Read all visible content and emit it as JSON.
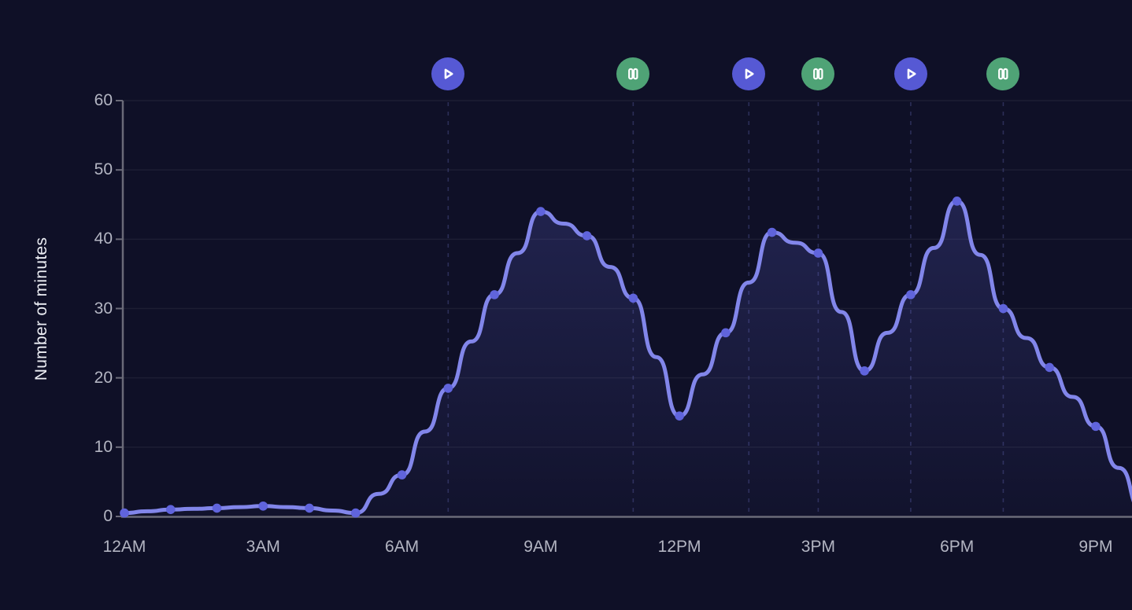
{
  "app": {
    "background_color": "#0f1027"
  },
  "chart_data": {
    "type": "area",
    "title": "",
    "xlabel": "",
    "ylabel": "Number of minutes",
    "ylim": [
      0,
      60
    ],
    "y_tick_step": 10,
    "y_ticks": [
      "0",
      "10",
      "20",
      "30",
      "40",
      "50",
      "60"
    ],
    "grid": "horizontal",
    "legend": "none",
    "x": [
      "12AM",
      "1AM",
      "2AM",
      "3AM",
      "4AM",
      "5AM",
      "6AM",
      "7AM",
      "8AM",
      "9AM",
      "10AM",
      "11AM",
      "12PM",
      "1PM",
      "2PM",
      "3PM",
      "4PM",
      "5PM",
      "6PM",
      "7PM",
      "8PM",
      "9PM",
      "10PM"
    ],
    "hours": [
      0,
      1,
      2,
      3,
      4,
      5,
      6,
      7,
      8,
      9,
      10,
      11,
      12,
      13,
      14,
      15,
      16,
      17,
      18,
      19,
      20,
      21,
      22
    ],
    "values": [
      0.5,
      1,
      1.2,
      1.5,
      1.2,
      0.5,
      6,
      18.5,
      32,
      44,
      40.5,
      31.5,
      14.5,
      26.5,
      41,
      38,
      21,
      32,
      45.5,
      30,
      21.5,
      13,
      1
    ],
    "x_ticks": [
      {
        "label": "12AM",
        "hour": 0
      },
      {
        "label": "3AM",
        "hour": 3
      },
      {
        "label": "6AM",
        "hour": 6
      },
      {
        "label": "9AM",
        "hour": 9
      },
      {
        "label": "12PM",
        "hour": 12
      },
      {
        "label": "3PM",
        "hour": 15
      },
      {
        "label": "6PM",
        "hour": 18
      },
      {
        "label": "9PM",
        "hour": 21
      }
    ],
    "markers": [
      {
        "type": "play",
        "icon": "play-icon",
        "hour": 7,
        "time": "7AM"
      },
      {
        "type": "pause",
        "icon": "pause-icon",
        "hour": 11,
        "time": "11AM"
      },
      {
        "type": "play",
        "icon": "play-icon",
        "hour": 13.5,
        "time": "1:30PM"
      },
      {
        "type": "pause",
        "icon": "pause-icon",
        "hour": 15,
        "time": "3PM"
      },
      {
        "type": "play",
        "icon": "play-icon",
        "hour": 17,
        "time": "5PM"
      },
      {
        "type": "pause",
        "icon": "pause-icon",
        "hour": 19,
        "time": "7PM"
      }
    ]
  },
  "colors": {
    "line": "#8286ea",
    "dot": "#6064dc",
    "area_top": "rgba(99,104,218,0.28)",
    "area_bottom": "rgba(99,104,218,0.03)",
    "gridline": "rgba(255,255,255,0.06)",
    "axis": "#6a6a78",
    "guideline": "rgba(130,134,234,0.25)",
    "tick_label": "#b3b5c2",
    "axis_title": "#eceef4",
    "play_marker_bg": "#5659d4",
    "pause_marker_bg": "#4fa376",
    "marker_glyph": "#ffffff"
  }
}
